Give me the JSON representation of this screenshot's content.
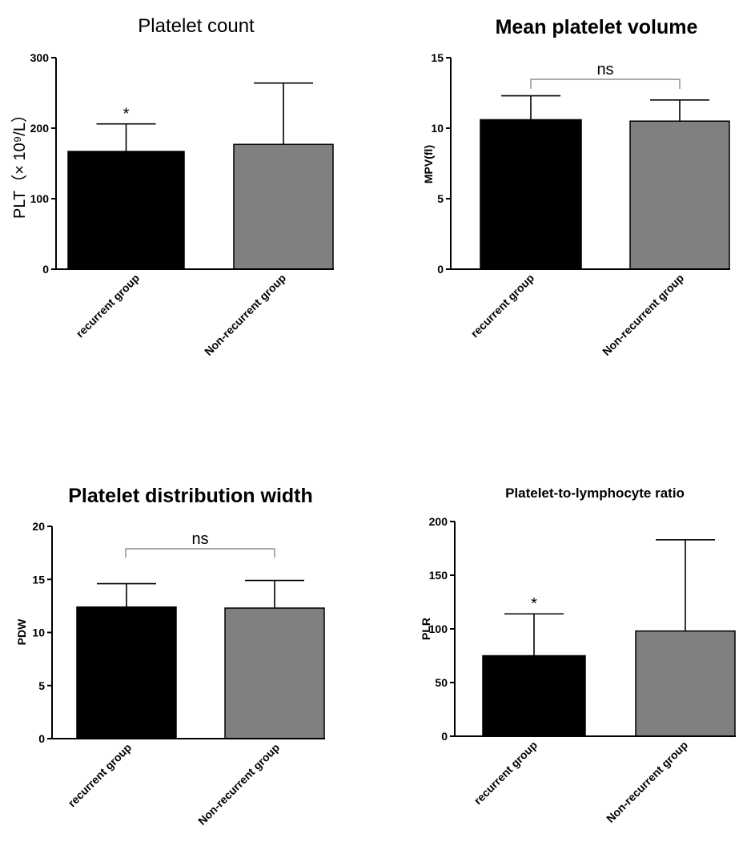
{
  "chart_data": [
    {
      "type": "bar",
      "title": "Platelet count",
      "ylabel": "PLT（× 10⁹/L）",
      "categories": [
        "recurrent group",
        "Non-recurrent group"
      ],
      "values": [
        167,
        177
      ],
      "error_upper": [
        206,
        264
      ],
      "colors": [
        "#000000",
        "#808080"
      ],
      "ylim": [
        0,
        300
      ],
      "yticks": [
        "0",
        "100",
        "200",
        "300"
      ],
      "annotations": [
        {
          "label": "*",
          "category": "recurrent group"
        }
      ]
    },
    {
      "type": "bar",
      "title": "Mean platelet volume",
      "ylabel": "MPV(fl)",
      "categories": [
        "recurrent group",
        "Non-recurrent group"
      ],
      "values": [
        10.6,
        10.5
      ],
      "error_upper": [
        12.3,
        12.0
      ],
      "colors": [
        "#000000",
        "#808080"
      ],
      "ylim": [
        0,
        15
      ],
      "yticks": [
        "0",
        "5",
        "10",
        "15"
      ],
      "annotations": [
        {
          "label": "ns",
          "type": "bracket"
        }
      ]
    },
    {
      "type": "bar",
      "title": "Platelet distribution width",
      "ylabel": "PDW",
      "categories": [
        "recurrent group",
        "Non-recurrent group"
      ],
      "values": [
        12.4,
        12.3
      ],
      "error_upper": [
        14.6,
        14.9
      ],
      "colors": [
        "#000000",
        "#808080"
      ],
      "ylim": [
        0,
        20
      ],
      "yticks": [
        "0",
        "5",
        "10",
        "15",
        "20"
      ],
      "annotations": [
        {
          "label": "ns",
          "type": "bracket"
        }
      ]
    },
    {
      "type": "bar",
      "title": "Platelet-to-lymphocyte ratio",
      "ylabel": "PLR",
      "categories": [
        "recurrent group",
        "Non-recurrent group"
      ],
      "values": [
        75,
        98
      ],
      "error_upper": [
        114,
        183
      ],
      "colors": [
        "#000000",
        "#808080"
      ],
      "ylim": [
        0,
        200
      ],
      "yticks": [
        "0",
        "50",
        "100",
        "150",
        "200"
      ],
      "annotations": [
        {
          "label": "*",
          "category": "recurrent group"
        }
      ]
    }
  ]
}
